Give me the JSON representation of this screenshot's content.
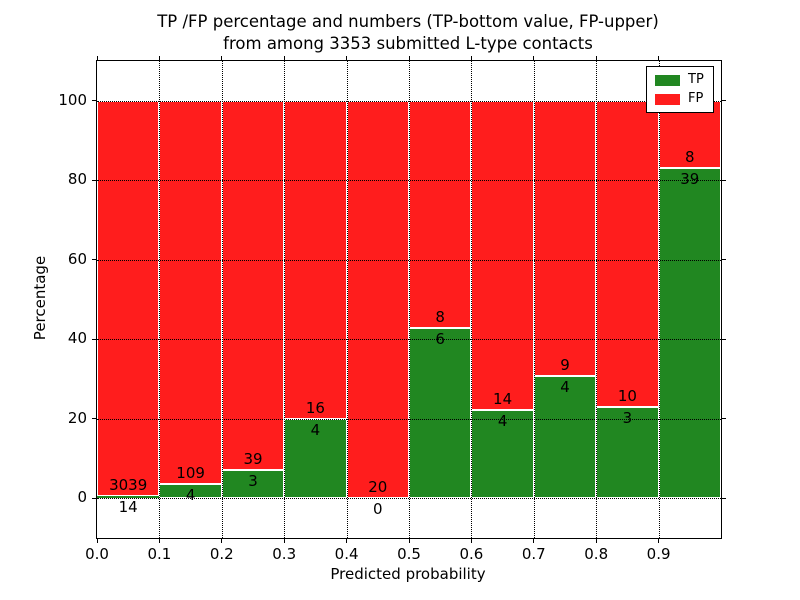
{
  "figure": {
    "title_line1": "TP /FP percentage and numbers (TP-bottom value, FP-upper)",
    "title_line2": "from among 3353 submitted L-type contacts"
  },
  "chart_data": {
    "type": "bar",
    "stacked": true,
    "normalized": "each bin stacked to 100%, green TP portion on bottom, red FP portion on top",
    "title": "TP /FP percentage and numbers (TP-bottom value, FP-upper) from among 3353 submitted L-type contacts",
    "xlabel": "Predicted probability",
    "ylabel": "Percentage",
    "total_contacts": 3353,
    "categories": [
      "0.0-0.1",
      "0.1-0.2",
      "0.2-0.3",
      "0.3-0.4",
      "0.4-0.5",
      "0.5-0.6",
      "0.6-0.7",
      "0.7-0.8",
      "0.8-0.9",
      "0.9-1.0"
    ],
    "series": [
      {
        "name": "TP",
        "color": "#218721",
        "counts": [
          14,
          4,
          3,
          4,
          0,
          6,
          4,
          4,
          3,
          39
        ]
      },
      {
        "name": "FP",
        "color": "#ff1d1d",
        "counts": [
          3039,
          109,
          39,
          16,
          20,
          8,
          14,
          9,
          10,
          8
        ]
      }
    ],
    "bar_value_labels": "TP count shown just below segment boundary, FP count shown just above segment boundary",
    "x_ticks": [
      "0.0",
      "0.1",
      "0.2",
      "0.3",
      "0.4",
      "0.5",
      "0.6",
      "0.7",
      "0.8",
      "0.9"
    ],
    "y_ticks": [
      0,
      20,
      40,
      60,
      80,
      100
    ],
    "xlim": [
      0,
      1
    ],
    "ylim": [
      -10,
      110
    ],
    "grid": true,
    "grid_style": "dotted black",
    "legend": {
      "position": "upper right",
      "entries": [
        {
          "label": "TP",
          "color": "#218721"
        },
        {
          "label": "FP",
          "color": "#ff1d1d"
        }
      ]
    }
  }
}
